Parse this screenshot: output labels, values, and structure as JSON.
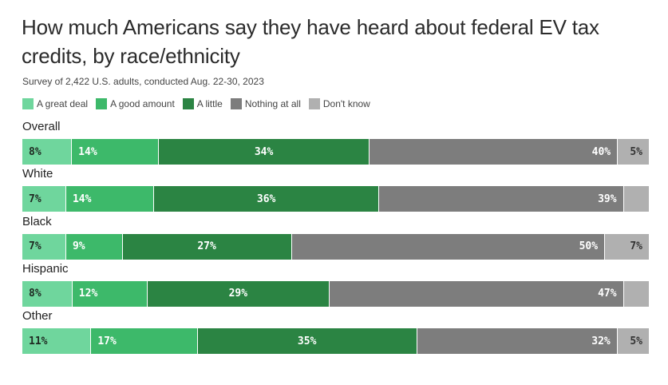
{
  "chart_data": {
    "type": "bar",
    "orientation": "horizontal-stacked-100",
    "title": "How much Americans say they have heard about federal EV tax credits, by race/ethnicity",
    "subtitle": "Survey of 2,422 U.S. adults, conducted Aug. 22-30, 2023",
    "legend_position": "top-left",
    "categories": [
      "Overall",
      "White",
      "Black",
      "Hispanic",
      "Other"
    ],
    "series": [
      {
        "name": "A great deal",
        "color": "#6fd69d",
        "text_color": "#1f2a22",
        "align": "left",
        "values": [
          8,
          7,
          7,
          8,
          11
        ]
      },
      {
        "name": "A good amount",
        "color": "#3db96a",
        "text_color": "#ffffff",
        "align": "left",
        "values": [
          14,
          14,
          9,
          12,
          17
        ]
      },
      {
        "name": "A little",
        "color": "#2b8443",
        "text_color": "#ffffff",
        "align": "center",
        "values": [
          34,
          36,
          27,
          29,
          35
        ]
      },
      {
        "name": "Nothing at all",
        "color": "#7d7d7d",
        "text_color": "#ffffff",
        "align": "right",
        "values": [
          40,
          39,
          50,
          47,
          32
        ]
      },
      {
        "name": "Don't know",
        "color": "#b0b0b0",
        "text_color": "#333333",
        "align": "right",
        "values": [
          5,
          4,
          7,
          4,
          5
        ]
      }
    ],
    "data_labels": [
      [
        "8%",
        "14%",
        "34%",
        "40%",
        "5%"
      ],
      [
        "7%",
        "14%",
        "36%",
        "39%",
        ""
      ],
      [
        "7%",
        "9%",
        "27%",
        "50%",
        "7%"
      ],
      [
        "8%",
        "12%",
        "29%",
        "47%",
        ""
      ],
      [
        "11%",
        "17%",
        "35%",
        "32%",
        "5%"
      ]
    ],
    "xlabel": "",
    "ylabel": "",
    "xlim": [
      0,
      100
    ],
    "grid": false
  }
}
